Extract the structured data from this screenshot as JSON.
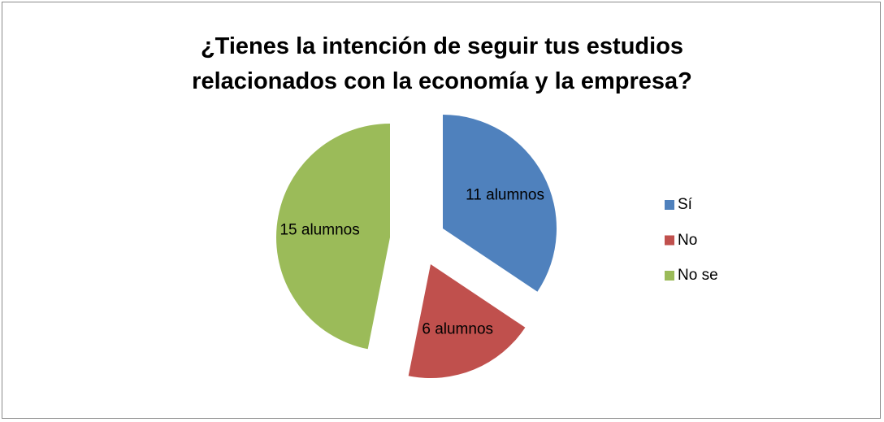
{
  "chart_data": {
    "type": "pie",
    "title": "¿Tienes la intención de seguir tus estudios relacionados con la economía y la empresa?",
    "categories": [
      "Sí",
      "No",
      "No se"
    ],
    "values": [
      11,
      6,
      15
    ],
    "value_labels": [
      "11 alumnos",
      "6 alumnos",
      "15 alumnos"
    ],
    "colors": [
      "#4f81bd",
      "#c0504d",
      "#9bbb59"
    ],
    "legend": "right"
  }
}
